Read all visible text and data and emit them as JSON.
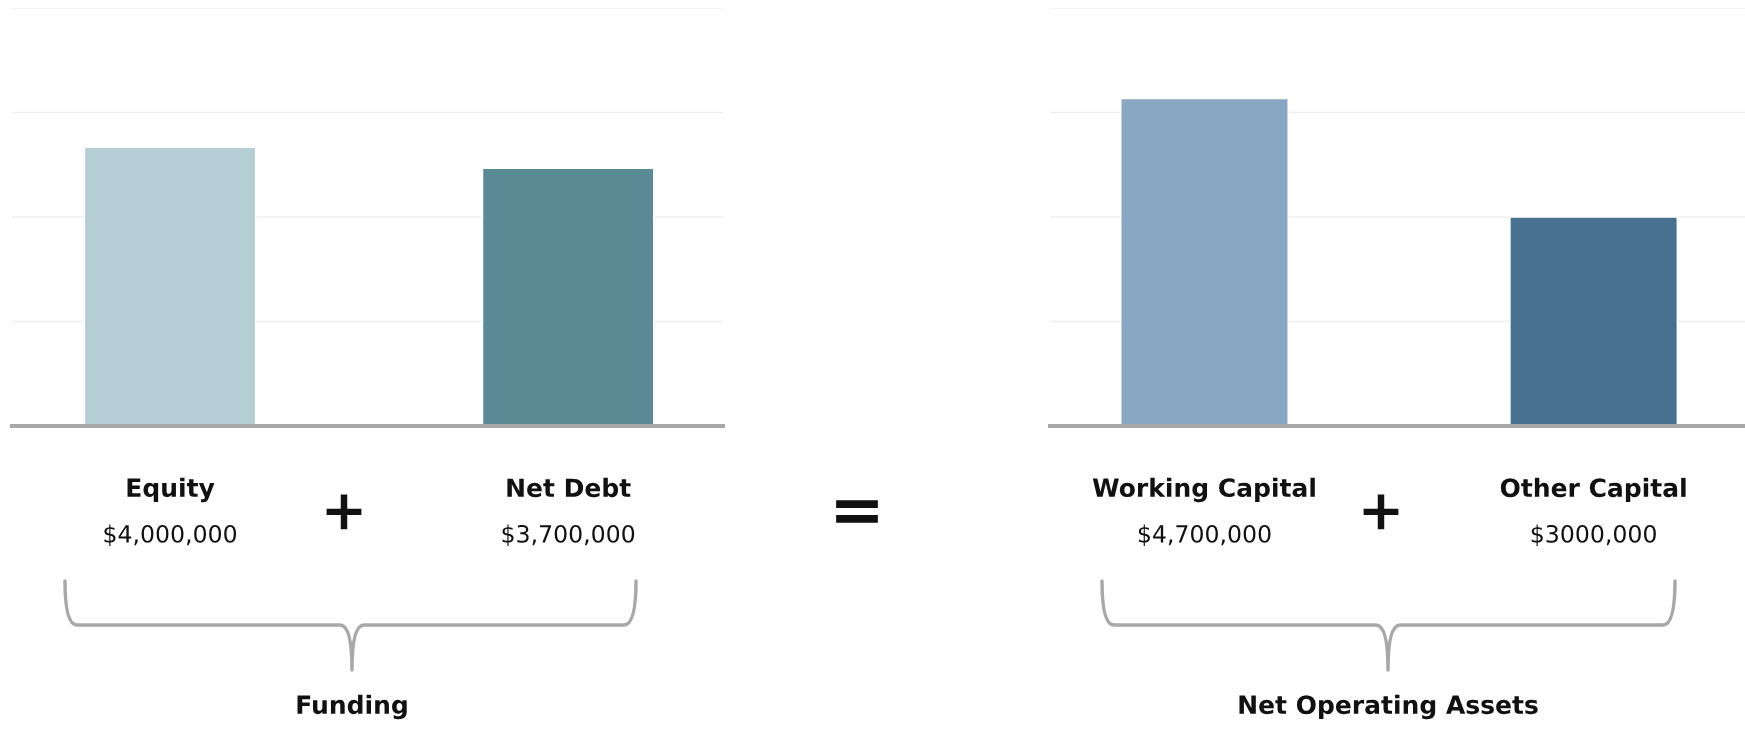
{
  "chart_data": [
    {
      "type": "bar",
      "categories": [
        "Equity",
        "Net Debt"
      ],
      "values": [
        4000000,
        3700000
      ],
      "colors": [
        "#b5cdd4",
        "#5a8a94"
      ],
      "value_labels": [
        "$4,000,000",
        "$3,700,000"
      ],
      "ylim": [
        0,
        6000000
      ],
      "yticks": [
        0,
        1500000,
        3000000,
        4500000,
        6000000
      ],
      "grid": "y",
      "tick_labels": false,
      "annotations": [
        "+",
        "Funding",
        "="
      ]
    },
    {
      "type": "bar",
      "categories": [
        "Working Capital",
        "Other Capital"
      ],
      "values": [
        4700000,
        3000000
      ],
      "colors": [
        "#89a7c2",
        "#48708f"
      ],
      "value_labels": [
        "$4,700,000",
        "$3000,000"
      ],
      "ylim": [
        0,
        6000000
      ],
      "yticks": [
        0,
        1500000,
        3000000,
        4500000,
        6000000
      ],
      "grid": "y",
      "tick_labels": false,
      "annotations": [
        "+",
        "Net Operating Assets"
      ]
    }
  ]
}
